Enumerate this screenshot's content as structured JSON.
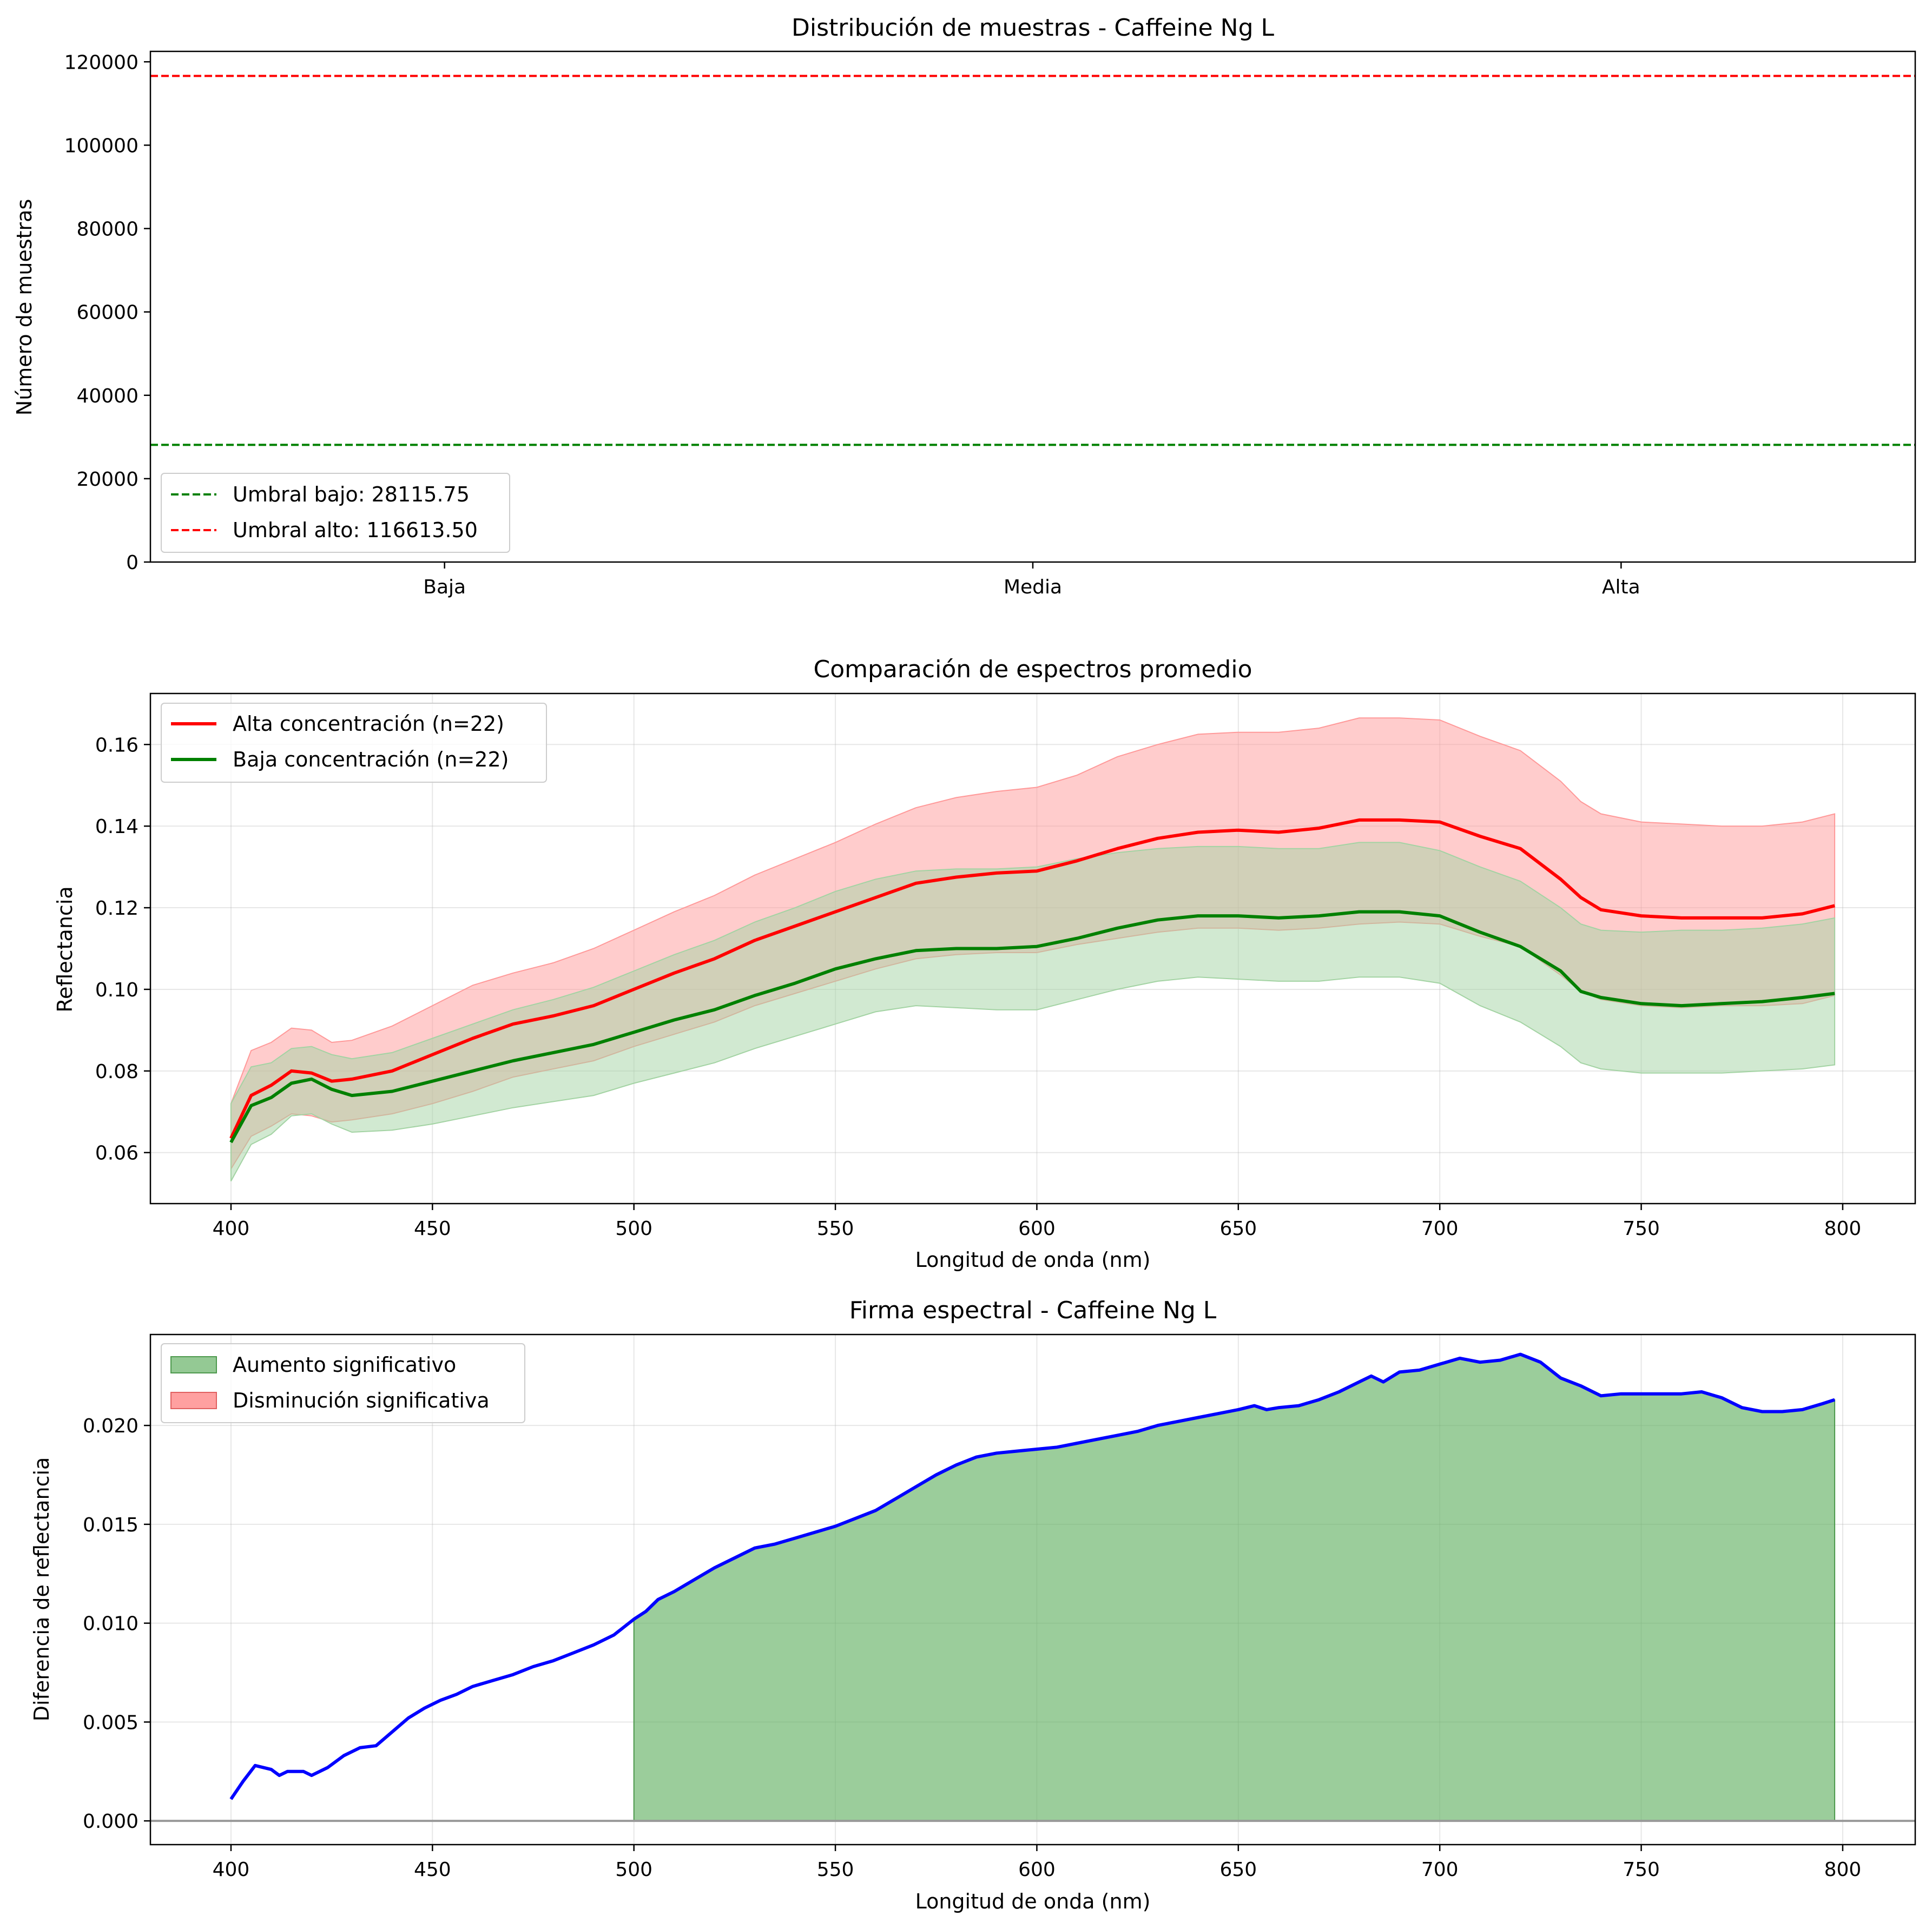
{
  "figure": {
    "background": "#ffffff"
  },
  "chart_data": [
    {
      "type": "bar",
      "title": "Distribución de muestras - Caffeine Ng L",
      "xlabel": "",
      "ylabel": "Número de muestras",
      "categories": [
        "Baja",
        "Media",
        "Alta"
      ],
      "values": [
        0,
        0,
        0
      ],
      "ylim": [
        0,
        122500
      ],
      "yticks": [
        0,
        20000,
        40000,
        60000,
        80000,
        100000,
        120000
      ],
      "grid": false,
      "legend_position": "lower-left",
      "hlines": [
        {
          "label": "Umbral bajo: 28115.75",
          "value": 28115.75,
          "color": "#008000",
          "style": "dashed"
        },
        {
          "label": "Umbral alto: 116613.50",
          "value": 116613.5,
          "color": "#ff0000",
          "style": "dashed"
        }
      ]
    },
    {
      "type": "line",
      "title": "Comparación de espectros promedio",
      "xlabel": "Longitud de onda (nm)",
      "ylabel": "Reflectancia",
      "xlim": [
        380,
        818
      ],
      "ylim": [
        0.0475,
        0.1725
      ],
      "xticks": [
        400,
        450,
        500,
        550,
        600,
        650,
        700,
        750,
        800
      ],
      "yticks": [
        0.06,
        0.08,
        0.1,
        0.12,
        0.14,
        0.16
      ],
      "ytick_labels": [
        "0.06",
        "0.08",
        "0.10",
        "0.12",
        "0.14",
        "0.16"
      ],
      "grid": true,
      "legend_position": "top-left",
      "x": [
        400,
        405,
        410,
        415,
        420,
        425,
        430,
        440,
        450,
        460,
        470,
        480,
        490,
        500,
        510,
        520,
        530,
        540,
        550,
        560,
        570,
        580,
        590,
        600,
        610,
        620,
        630,
        640,
        650,
        660,
        670,
        680,
        690,
        700,
        710,
        720,
        730,
        735,
        740,
        750,
        760,
        770,
        780,
        790,
        798
      ],
      "series": [
        {
          "name": "Alta concentración (n=22)",
          "color": "#ff0000",
          "band_color": "#ff9999",
          "mean": [
            0.0635,
            0.074,
            0.0765,
            0.08,
            0.0795,
            0.0775,
            0.078,
            0.08,
            0.084,
            0.088,
            0.0915,
            0.0935,
            0.096,
            0.1,
            0.104,
            0.1075,
            0.112,
            0.1155,
            0.119,
            0.1225,
            0.126,
            0.1275,
            0.1285,
            0.129,
            0.1315,
            0.1345,
            0.137,
            0.1385,
            0.139,
            0.1385,
            0.1395,
            0.1415,
            0.1415,
            0.141,
            0.1375,
            0.1345,
            0.127,
            0.1225,
            0.1195,
            0.118,
            0.1175,
            0.1175,
            0.1175,
            0.1185,
            0.1205
          ],
          "upper": [
            0.072,
            0.085,
            0.087,
            0.0905,
            0.09,
            0.087,
            0.0875,
            0.091,
            0.096,
            0.101,
            0.104,
            0.1065,
            0.11,
            0.1145,
            0.119,
            0.123,
            0.128,
            0.132,
            0.136,
            0.1405,
            0.1445,
            0.147,
            0.1485,
            0.1495,
            0.1525,
            0.157,
            0.16,
            0.1625,
            0.163,
            0.163,
            0.164,
            0.1665,
            0.1665,
            0.166,
            0.162,
            0.1585,
            0.151,
            0.146,
            0.143,
            0.141,
            0.1405,
            0.14,
            0.14,
            0.141,
            0.143
          ],
          "lower": [
            0.056,
            0.064,
            0.0665,
            0.0695,
            0.069,
            0.0675,
            0.068,
            0.0695,
            0.072,
            0.075,
            0.0785,
            0.0805,
            0.0825,
            0.086,
            0.089,
            0.092,
            0.096,
            0.099,
            0.102,
            0.105,
            0.1075,
            0.1085,
            0.109,
            0.109,
            0.111,
            0.1125,
            0.114,
            0.115,
            0.115,
            0.1145,
            0.115,
            0.116,
            0.1165,
            0.116,
            0.113,
            0.1105,
            0.1035,
            0.0995,
            0.0975,
            0.096,
            0.0955,
            0.096,
            0.096,
            0.0965,
            0.0985
          ]
        },
        {
          "name": "Baja concentración (n=22)",
          "color": "#008000",
          "band_color": "#a3d3a3",
          "mean": [
            0.0625,
            0.0715,
            0.0735,
            0.077,
            0.078,
            0.0755,
            0.074,
            0.075,
            0.0775,
            0.08,
            0.0825,
            0.0845,
            0.0865,
            0.0895,
            0.0925,
            0.095,
            0.0985,
            0.1015,
            0.105,
            0.1075,
            0.1095,
            0.11,
            0.11,
            0.1105,
            0.1125,
            0.115,
            0.117,
            0.118,
            0.118,
            0.1175,
            0.118,
            0.119,
            0.119,
            0.118,
            0.114,
            0.1105,
            0.1045,
            0.0995,
            0.098,
            0.0965,
            0.096,
            0.0965,
            0.097,
            0.098,
            0.099
          ],
          "upper": [
            0.072,
            0.081,
            0.082,
            0.0855,
            0.086,
            0.084,
            0.083,
            0.0845,
            0.088,
            0.0915,
            0.095,
            0.0975,
            0.1005,
            0.1045,
            0.1085,
            0.112,
            0.1165,
            0.12,
            0.124,
            0.127,
            0.129,
            0.1295,
            0.1295,
            0.13,
            0.132,
            0.1335,
            0.1345,
            0.135,
            0.135,
            0.1345,
            0.1345,
            0.136,
            0.136,
            0.134,
            0.13,
            0.1265,
            0.12,
            0.116,
            0.1145,
            0.114,
            0.1145,
            0.1145,
            0.115,
            0.116,
            0.1175
          ],
          "lower": [
            0.053,
            0.062,
            0.0645,
            0.069,
            0.0695,
            0.067,
            0.065,
            0.0655,
            0.067,
            0.069,
            0.071,
            0.0725,
            0.074,
            0.077,
            0.0795,
            0.082,
            0.0855,
            0.0885,
            0.0915,
            0.0945,
            0.096,
            0.0955,
            0.095,
            0.095,
            0.0975,
            0.1,
            0.102,
            0.103,
            0.1025,
            0.102,
            0.102,
            0.103,
            0.103,
            0.1015,
            0.096,
            0.092,
            0.086,
            0.082,
            0.0805,
            0.0795,
            0.0795,
            0.0795,
            0.08,
            0.0805,
            0.0815
          ]
        }
      ]
    },
    {
      "type": "area",
      "title": "Firma espectral - Caffeine Ng L",
      "xlabel": "Longitud de onda (nm)",
      "ylabel": "Diferencia de reflectancia",
      "xlim": [
        380,
        818
      ],
      "ylim": [
        -0.0012,
        0.0246
      ],
      "xticks": [
        400,
        450,
        500,
        550,
        600,
        650,
        700,
        750,
        800
      ],
      "yticks": [
        0,
        0.005,
        0.01,
        0.015,
        0.02
      ],
      "ytick_labels": [
        "0.000",
        "0.005",
        "0.010",
        "0.015",
        "0.020"
      ],
      "grid": true,
      "legend_position": "top-left",
      "zero_line_color": "#999999",
      "line_color": "#0000ff",
      "x": [
        400,
        403,
        406,
        410,
        412,
        414,
        416,
        418,
        420,
        424,
        428,
        432,
        436,
        440,
        444,
        448,
        452,
        456,
        460,
        465,
        470,
        475,
        480,
        485,
        490,
        495,
        500,
        503,
        506,
        510,
        515,
        520,
        525,
        530,
        535,
        540,
        545,
        550,
        555,
        560,
        565,
        570,
        575,
        580,
        585,
        590,
        595,
        600,
        605,
        610,
        615,
        620,
        625,
        630,
        635,
        640,
        645,
        650,
        654,
        657,
        660,
        665,
        670,
        675,
        680,
        683,
        686,
        690,
        695,
        700,
        705,
        710,
        715,
        720,
        725,
        730,
        735,
        740,
        745,
        750,
        755,
        760,
        765,
        770,
        775,
        780,
        785,
        790,
        795,
        798
      ],
      "y": [
        0.0011,
        0.002,
        0.0028,
        0.0026,
        0.0023,
        0.0025,
        0.0025,
        0.0025,
        0.0023,
        0.0027,
        0.0033,
        0.0037,
        0.0038,
        0.0045,
        0.0052,
        0.0057,
        0.0061,
        0.0064,
        0.0068,
        0.0071,
        0.0074,
        0.0078,
        0.0081,
        0.0085,
        0.0089,
        0.0094,
        0.0102,
        0.0106,
        0.0112,
        0.0116,
        0.0122,
        0.0128,
        0.0133,
        0.0138,
        0.014,
        0.0143,
        0.0146,
        0.0149,
        0.0153,
        0.0157,
        0.0163,
        0.0169,
        0.0175,
        0.018,
        0.0184,
        0.0186,
        0.0187,
        0.0188,
        0.0189,
        0.0191,
        0.0193,
        0.0195,
        0.0197,
        0.02,
        0.0202,
        0.0204,
        0.0206,
        0.0208,
        0.021,
        0.0208,
        0.0209,
        0.021,
        0.0213,
        0.0217,
        0.0222,
        0.0225,
        0.0222,
        0.0227,
        0.0228,
        0.0231,
        0.0234,
        0.0232,
        0.0233,
        0.0236,
        0.0232,
        0.0224,
        0.022,
        0.0215,
        0.0216,
        0.0216,
        0.0216,
        0.0216,
        0.0217,
        0.0214,
        0.0209,
        0.0207,
        0.0207,
        0.0208,
        0.0211,
        0.0213
      ],
      "significant_increase": {
        "label": "Aumento significativo",
        "color": "#66b266",
        "range": [
          500,
          798
        ]
      },
      "significant_decrease": {
        "label": "Disminución significativa",
        "color": "#ff8080",
        "range": []
      }
    }
  ]
}
